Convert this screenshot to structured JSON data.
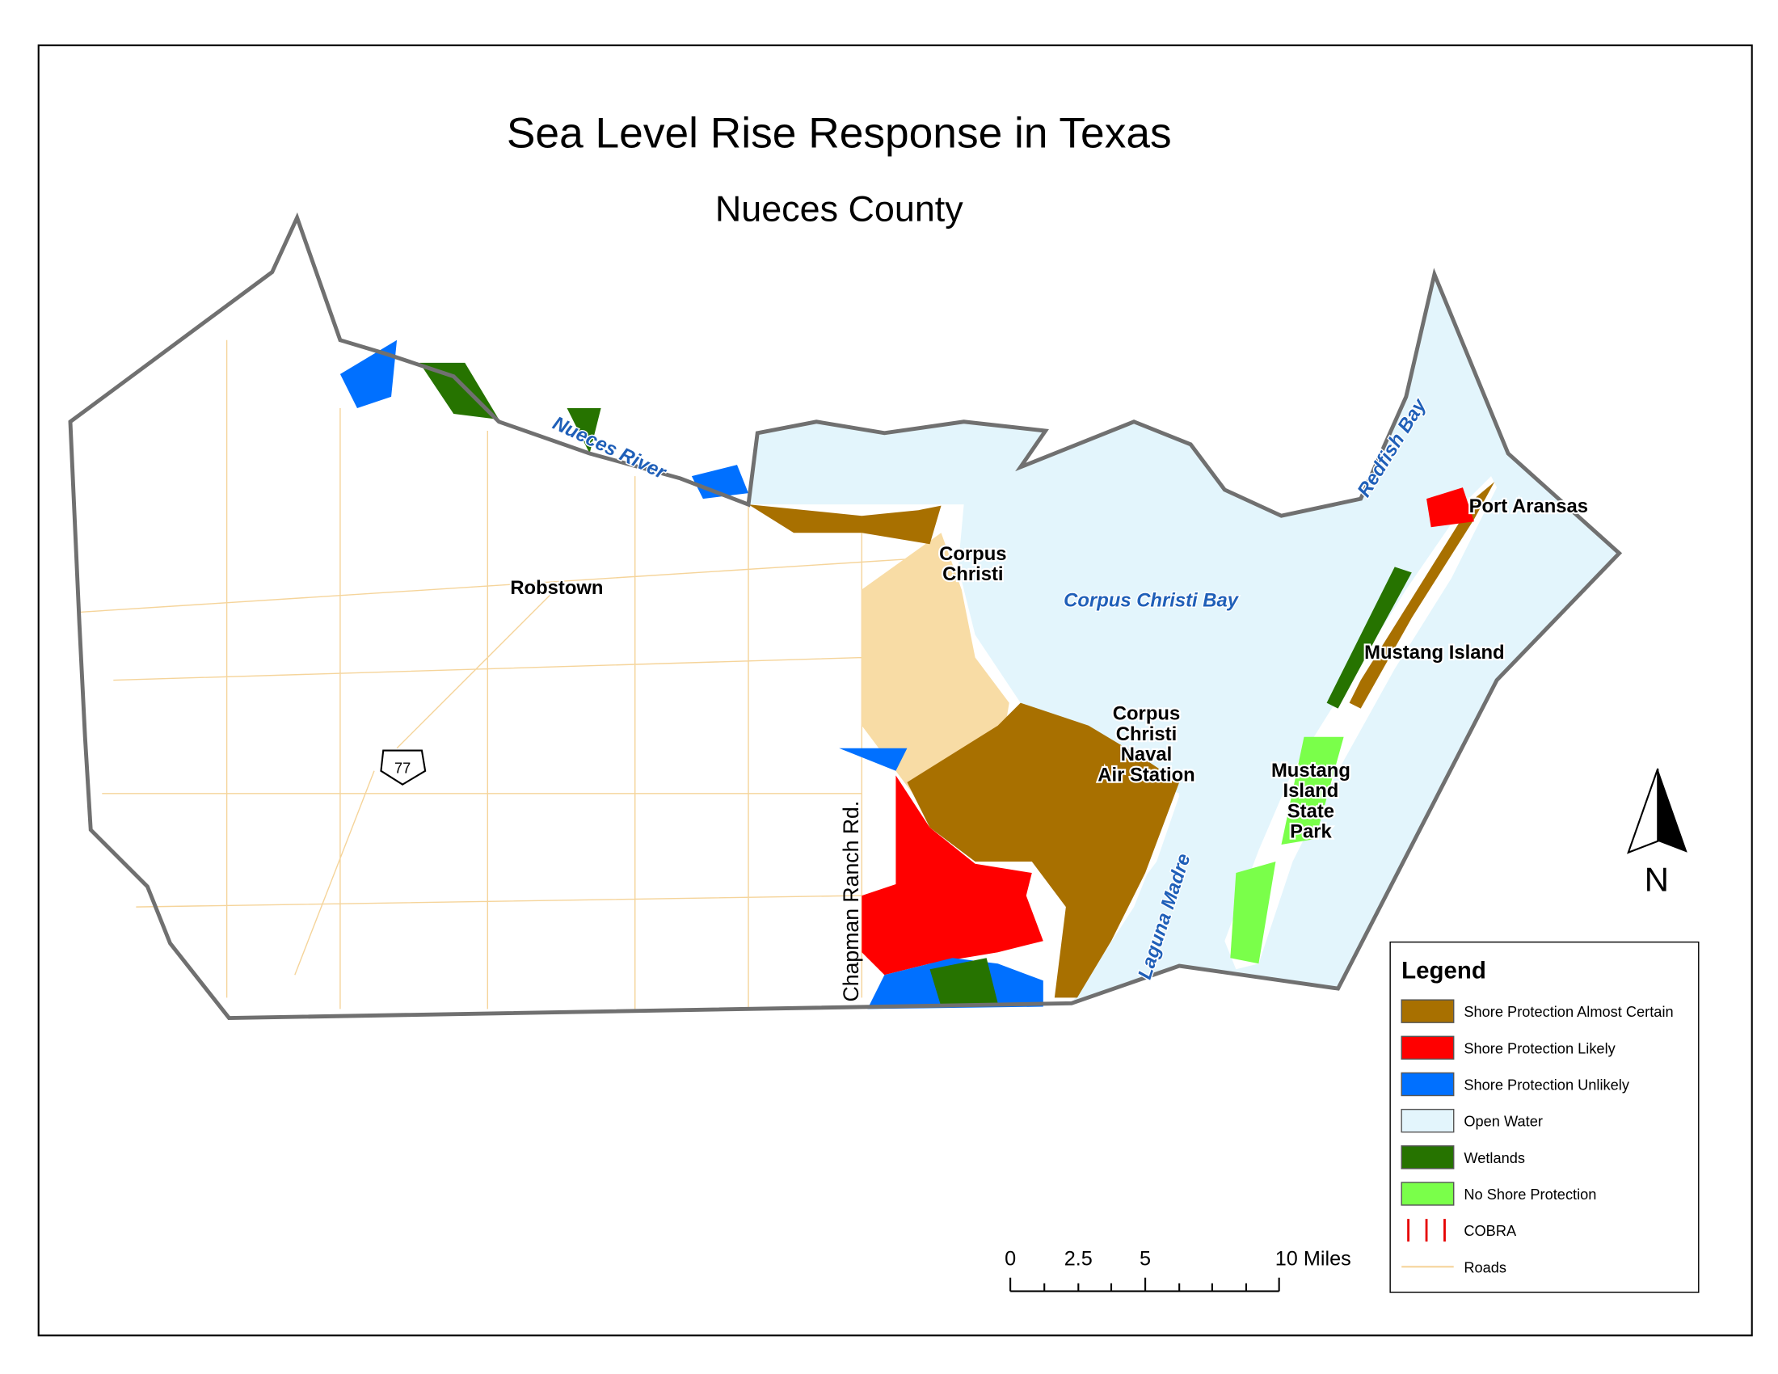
{
  "title": "Sea Level Rise Response in Texas",
  "subtitle": "Nueces County",
  "places": [
    {
      "lines": [
        "Robstown"
      ]
    },
    {
      "lines": [
        "Corpus",
        "Christi"
      ]
    },
    {
      "lines": [
        "Mustang Island"
      ]
    },
    {
      "lines": [
        "Corpus",
        "Christi",
        "Naval",
        "Air Station"
      ]
    },
    {
      "lines": [
        "Mustang",
        "Island",
        "State",
        "Park"
      ]
    },
    {
      "lines": [
        "Port Aransas"
      ]
    }
  ],
  "water_labels": [
    "Corpus Christi Bay",
    "Nueces River",
    "Redfish Bay",
    "Laguna Madre"
  ],
  "road_label": "Chapman Ranch Rd.",
  "highway_shield": "77",
  "north_arrow": "N",
  "scale_bar": {
    "labels": [
      "0",
      "2.5",
      "5",
      "10 Miles"
    ]
  },
  "legend": {
    "title": "Legend",
    "items": [
      {
        "label": "Shore Protection Almost Certain",
        "color": "#a87000"
      },
      {
        "label": "Shore Protection Likely",
        "color": "#ff0000"
      },
      {
        "label": "Shore Protection Unlikely",
        "color": "#0070ff"
      },
      {
        "label": "Open Water",
        "color": "#e3f5fc"
      },
      {
        "label": "Wetlands",
        "color": "#267300"
      },
      {
        "label": "No Shore Protection",
        "color": "#7aff4a"
      },
      {
        "label": "COBRA",
        "color": "#e60000"
      },
      {
        "label": "Roads",
        "color": "#f5d49a"
      }
    ]
  }
}
